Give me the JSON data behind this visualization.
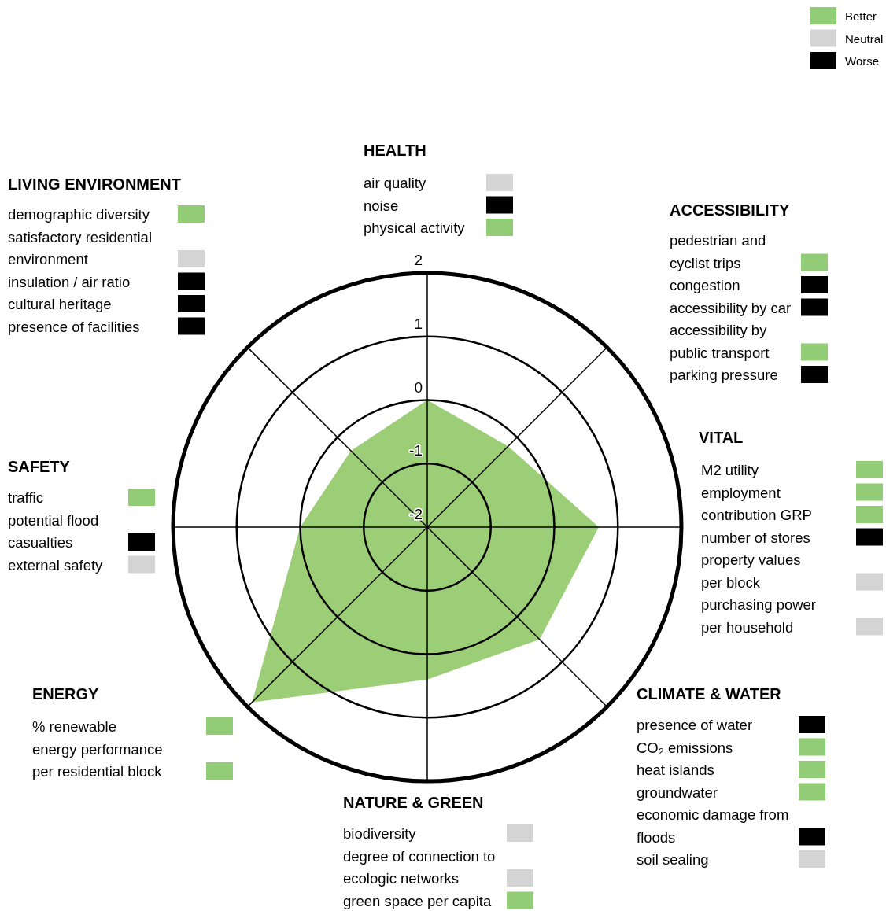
{
  "chart_data": [
    {
      "type": "radar",
      "categories": [
        "HEALTH",
        "ACCESSIBILITY",
        "VITAL",
        "CLIMATE & WATER",
        "NATURE & GREEN",
        "ENERGY",
        "SAFETY",
        "LIVING ENVIRONMENT"
      ],
      "series": [
        {
          "color": "#9ccd77",
          "values": [
            0,
            -0.2,
            0.7,
            0.5,
            0.4,
            1.9,
            0,
            -0.3
          ]
        }
      ],
      "ylim": [
        -2,
        2
      ],
      "yticks": [
        -2,
        -1,
        0,
        1,
        2
      ],
      "grid": true
    },
    {
      "type": "other",
      "categories": [
        "Better",
        "Neutral",
        "Worse"
      ],
      "colors": [
        "#93cc76",
        "#d4d4d4",
        "#000000"
      ]
    },
    {
      "type": "other",
      "categories": [
        "air quality",
        "noise",
        "physical activity"
      ],
      "colors": [
        "#d4d4d4",
        "#000000",
        "#93cc76"
      ]
    },
    {
      "type": "other",
      "categories": [
        "pedestrian and\ncyclist trips",
        "congestion",
        "accessibility by car",
        "accessibility by\npublic transport",
        "parking pressure"
      ],
      "colors": [
        "#93cc76",
        "#000000",
        "#000000",
        "#93cc76",
        "#000000"
      ]
    },
    {
      "type": "other",
      "categories": [
        "M2 utility",
        "employment",
        "contribution GRP",
        "number of stores",
        "property values\nper block",
        "purchasing power\nper household"
      ],
      "colors": [
        "#93cc76",
        "#93cc76",
        "#93cc76",
        "#000000",
        "#d4d4d4",
        "#d4d4d4"
      ]
    },
    {
      "type": "other",
      "categories": [
        "presence of water",
        "CO₂ emissions",
        "heat islands",
        "groundwater",
        "economic damage from\nfloods",
        "soil sealing"
      ],
      "colors": [
        "#000000",
        "#93cc76",
        "#93cc76",
        "#93cc76",
        "#000000",
        "#d4d4d4"
      ]
    },
    {
      "type": "other",
      "categories": [
        "biodiversity",
        "degree of connection to\necologic networks",
        "green space per capita"
      ],
      "colors": [
        "#d4d4d4",
        "#d4d4d4",
        "#93cc76"
      ]
    },
    {
      "type": "other",
      "categories": [
        "% renewable",
        "energy performance\nper residential block"
      ],
      "colors": [
        "#93cc76",
        "#93cc76"
      ]
    },
    {
      "type": "other",
      "categories": [
        "traffic",
        "potential flood\ncasualties",
        "external safety"
      ],
      "colors": [
        "#93cc76",
        "#000000",
        "#d4d4d4"
      ]
    },
    {
      "type": "other",
      "categories": [
        "demographic diversity",
        "satisfactory residential\nenvironment",
        "insulation / air ratio",
        "cultural heritage",
        "presence of facilities"
      ],
      "colors": [
        "#93cc76",
        "#d4d4d4",
        "#000000",
        "#000000",
        "#000000"
      ]
    }
  ]
}
